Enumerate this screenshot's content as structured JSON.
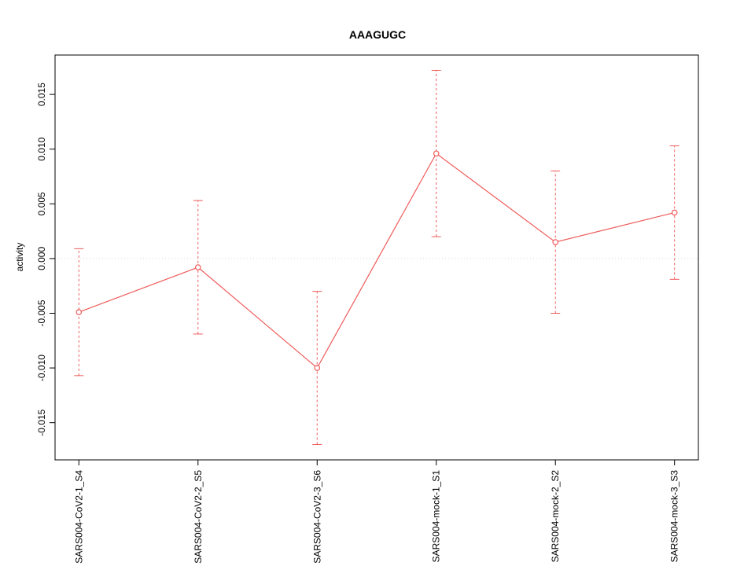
{
  "chart_data": {
    "type": "line",
    "title": "AAAGUGC",
    "xlabel": "",
    "ylabel": "activity",
    "categories": [
      "SARS004-CoV2-1_S4",
      "SARS004-CoV2-2_S5",
      "SARS004-CoV2-3_S6",
      "SARS004-mock-1_S1",
      "SARS004-mock-2_S2",
      "SARS004-mock-3_S3"
    ],
    "series": [
      {
        "name": "activity",
        "values": [
          -0.0049,
          -0.0008,
          -0.01,
          0.0096,
          0.0015,
          0.0042
        ],
        "error_low": [
          -0.0107,
          -0.0069,
          -0.017,
          0.002,
          -0.005,
          -0.0019
        ],
        "error_high": [
          0.0009,
          0.0053,
          -0.003,
          0.0172,
          0.008,
          0.0103
        ]
      }
    ],
    "y_ticks": [
      -0.015,
      -0.01,
      -0.005,
      0.0,
      0.005,
      0.01,
      0.015
    ],
    "y_tick_labels": [
      "-0.015",
      "-0.010",
      "-0.005",
      "0.000",
      "0.005",
      "0.010",
      "0.015"
    ],
    "xlim": [
      0.8,
      6.2
    ],
    "ylim": [
      -0.0184,
      0.0186
    ],
    "grid": {
      "y_zero_line": true,
      "style": "dotted"
    },
    "legend": "none",
    "colors": {
      "series": "#f05b5b",
      "grid": "#d8d8d8",
      "axis": "#000000",
      "text": "#000000",
      "point_fill": "#ffffff"
    }
  }
}
